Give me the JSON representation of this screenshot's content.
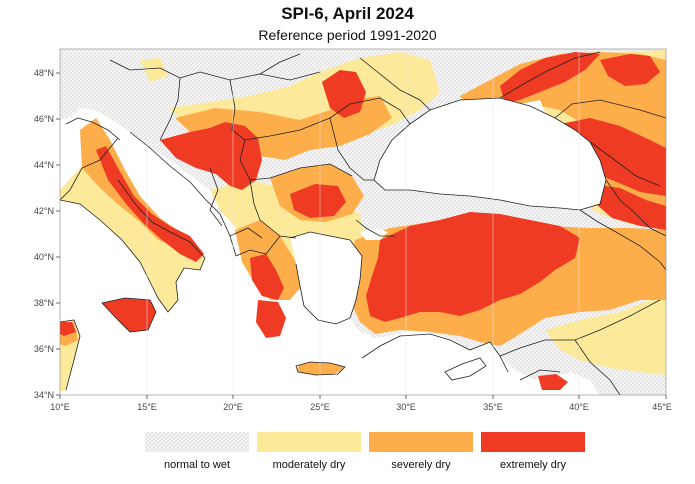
{
  "title": "SPI-6, April 2024",
  "subtitle": "Reference period 1991-2020",
  "colors": {
    "normal_to_wet": "#f4f4f4",
    "moderately_dry": "#fde99a",
    "severely_dry": "#fdae4b",
    "extremely_dry": "#ef3b24",
    "sea": "#ffffff",
    "border": "#222222"
  },
  "axes": {
    "x_ticks": [
      "10°E",
      "15°E",
      "20°E",
      "25°E",
      "30°E",
      "35°E",
      "40°E",
      "45°E"
    ],
    "y_ticks": [
      "48°N",
      "46°N",
      "44°N",
      "42°N",
      "40°N",
      "38°N",
      "36°N",
      "34°N"
    ]
  },
  "legend": [
    {
      "label": "normal to wet",
      "class": "normal_to_wet"
    },
    {
      "label": "moderately dry",
      "class": "moderately_dry"
    },
    {
      "label": "severely dry",
      "class": "severely_dry"
    },
    {
      "label": "extremely dry",
      "class": "extremely_dry"
    }
  ]
}
